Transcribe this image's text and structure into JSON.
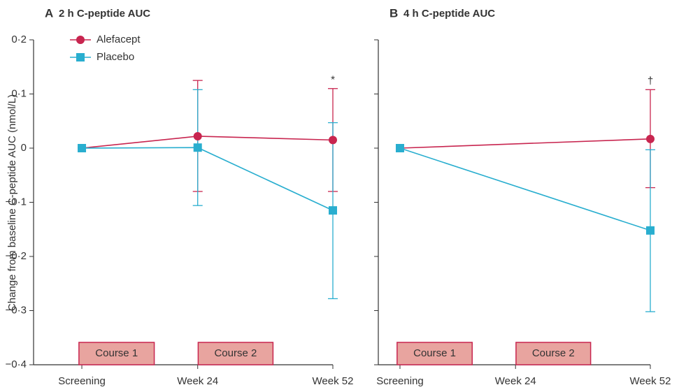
{
  "y_label": "Change from baseline C-peptide AUC (nmol/L)",
  "chart_data": [
    {
      "type": "line",
      "panel": "A",
      "title": "2 h C-peptide AUC",
      "legend": true,
      "x": [
        0,
        24,
        52
      ],
      "xlim": [
        -10,
        52
      ],
      "xticks": [
        {
          "value": 0,
          "label": "Screening"
        },
        {
          "value": 24,
          "label": "Week 24"
        },
        {
          "value": 52,
          "label": "Week 52"
        }
      ],
      "ylim": [
        -0.4,
        0.2
      ],
      "yticks": [
        {
          "value": 0.2,
          "label": "0·2"
        },
        {
          "value": 0.1,
          "label": "0·1"
        },
        0,
        {
          "value": -0.1,
          "label": "−0·1"
        },
        {
          "value": -0.2,
          "label": "−0·2"
        },
        {
          "value": -0.3,
          "label": "−0·3"
        },
        {
          "value": -0.4,
          "label": "−0·4"
        }
      ],
      "series": [
        {
          "name": "Alefacept",
          "color": "#c8254f",
          "marker": "circle",
          "values": [
            0,
            0.022,
            0.015
          ],
          "low": [
            null,
            -0.08,
            -0.08
          ],
          "high": [
            null,
            0.125,
            0.11
          ]
        },
        {
          "name": "Placebo",
          "color": "#29aecf",
          "marker": "square",
          "values": [
            0,
            0.001,
            -0.115
          ],
          "low": [
            null,
            -0.106,
            -0.278
          ],
          "high": [
            null,
            0.108,
            0.047
          ]
        }
      ],
      "annotations": [
        {
          "text": "*",
          "x": 52
        }
      ],
      "courses": [
        "Course 1",
        "Course 2"
      ]
    },
    {
      "type": "line",
      "panel": "B",
      "title": "4 h C-peptide AUC",
      "legend": false,
      "x": [
        0,
        24,
        52
      ],
      "xlim": [
        -4.5,
        52
      ],
      "xticks": [
        {
          "value": 0,
          "label": "Screening"
        },
        {
          "value": 24,
          "label": "Week 24"
        },
        {
          "value": 52,
          "label": "Week 52"
        }
      ],
      "ylim": [
        -0.4,
        0.2
      ],
      "yticks": [
        0.2,
        0.1,
        0,
        -0.1,
        -0.2,
        -0.3,
        -0.4
      ],
      "ytick_labels": false,
      "series": [
        {
          "color": "#c8254f",
          "marker": "circle",
          "values": [
            0,
            null,
            0.017
          ],
          "low": [
            null,
            null,
            -0.073
          ],
          "high": [
            null,
            null,
            0.108
          ]
        },
        {
          "color": "#29aecf",
          "marker": "square",
          "values": [
            0,
            null,
            -0.152
          ],
          "low": [
            null,
            null,
            -0.302
          ],
          "high": [
            null,
            null,
            -0.003
          ]
        }
      ],
      "annotations": [
        {
          "text": "†",
          "x": 52
        }
      ],
      "courses": [
        "Course 1",
        "Course 2"
      ]
    }
  ]
}
